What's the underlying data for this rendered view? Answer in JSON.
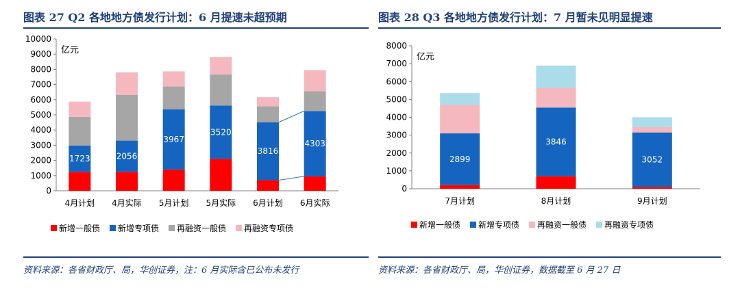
{
  "left": {
    "title": "图表 27   Q2 各地地方债发行计划：6 月提速未超预期",
    "source": "资料来源：各省财政厅、局，华创证券，注：6 月实际含已公布未发行",
    "chart_data": {
      "type": "bar",
      "stacked": true,
      "unit_label": "亿元",
      "ylim": [
        0,
        10000
      ],
      "yticks": [
        0,
        1000,
        2000,
        3000,
        4000,
        5000,
        6000,
        7000,
        8000,
        9000,
        10000
      ],
      "categories": [
        "4月计划",
        "4月实际",
        "5月计划",
        "5月实际",
        "6月计划",
        "6月实际"
      ],
      "series": [
        {
          "name": "新增一般债",
          "color": "#ff0000",
          "values": [
            1250,
            1250,
            1400,
            2100,
            700,
            950
          ]
        },
        {
          "name": "新增专项债",
          "color": "#1565c0",
          "values": [
            1723,
            2056,
            3967,
            3520,
            3816,
            4303
          ]
        },
        {
          "name": "再融资一般债",
          "color": "#a6a6a6",
          "values": [
            1900,
            3000,
            1500,
            2050,
            1050,
            1300
          ]
        },
        {
          "name": "再融资专项债",
          "color": "#f4b8be",
          "values": [
            1000,
            1500,
            1000,
            1150,
            600,
            1400
          ]
        }
      ],
      "data_labels_series": "新增专项债",
      "connector": {
        "from": "6月计划",
        "to": "6月实际"
      }
    }
  },
  "right": {
    "title": "图表 28   Q3 各地地方债发行计划：7 月暂未见明显提速",
    "source": "资料来源：各省财政厅、局，华创证券，数据截至 6 月 27 日",
    "chart_data": {
      "type": "bar",
      "stacked": true,
      "unit_label": "亿元",
      "ylim": [
        0,
        8000
      ],
      "yticks": [
        0,
        1000,
        2000,
        3000,
        4000,
        5000,
        6000,
        7000,
        8000
      ],
      "categories": [
        "7月计划",
        "8月计划",
        "9月计划"
      ],
      "series": [
        {
          "name": "新增一般债",
          "color": "#ff0000",
          "values": [
            200,
            700,
            100
          ]
        },
        {
          "name": "新增专项债",
          "color": "#1565c0",
          "values": [
            2899,
            3846,
            3052
          ]
        },
        {
          "name": "再融资一般债",
          "color": "#f4b8be",
          "values": [
            1600,
            1100,
            300
          ]
        },
        {
          "name": "再融资专项债",
          "color": "#aadcea",
          "values": [
            650,
            1250,
            550
          ]
        }
      ],
      "data_labels_series": "新增专项债"
    }
  }
}
